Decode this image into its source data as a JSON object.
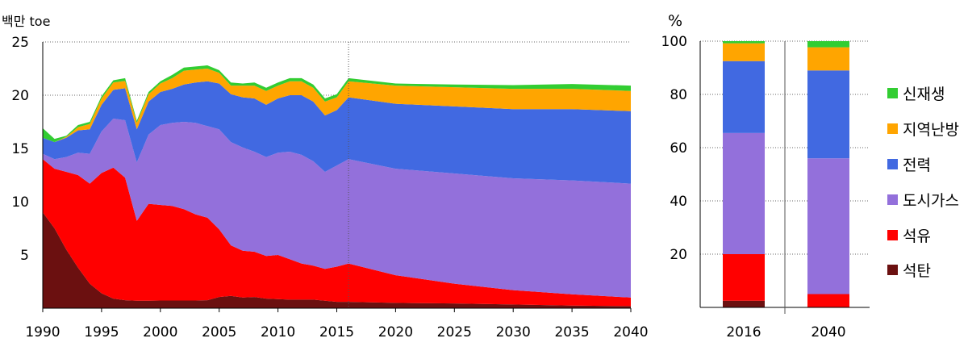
{
  "chart_data": [
    {
      "type": "area",
      "stacked": true,
      "ylabel": "백만 toe",
      "ylim": [
        0,
        25
      ],
      "yticks": [
        5,
        10,
        15,
        20,
        25
      ],
      "xlim": [
        1990,
        2040
      ],
      "xticks": [
        1990,
        1995,
        2000,
        2005,
        2010,
        2015,
        2020,
        2025,
        2030,
        2035,
        2040
      ],
      "marker_year": 2016,
      "grid": "horizontal dotted",
      "x": [
        1990,
        1991,
        1992,
        1993,
        1994,
        1995,
        1996,
        1997,
        1998,
        1999,
        2000,
        2001,
        2002,
        2003,
        2004,
        2005,
        2006,
        2007,
        2008,
        2009,
        2010,
        2011,
        2012,
        2013,
        2014,
        2015,
        2016,
        2020,
        2025,
        2030,
        2035,
        2040
      ],
      "series": [
        {
          "name": "석탄",
          "color": "#6b1010",
          "values": [
            9.0,
            7.5,
            5.5,
            3.8,
            2.3,
            1.4,
            0.9,
            0.75,
            0.7,
            0.7,
            0.72,
            0.72,
            0.72,
            0.72,
            0.75,
            1.05,
            1.15,
            1.0,
            1.05,
            0.9,
            0.85,
            0.8,
            0.8,
            0.8,
            0.7,
            0.6,
            0.6,
            0.5,
            0.45,
            0.35,
            0.25,
            0.2
          ]
        },
        {
          "name": "석유",
          "color": "#ff0000",
          "values": [
            5.0,
            5.6,
            7.3,
            8.7,
            9.4,
            11.3,
            12.3,
            11.5,
            7.5,
            9.1,
            8.98,
            8.88,
            8.58,
            8.08,
            7.75,
            6.35,
            4.75,
            4.4,
            4.25,
            4.0,
            4.15,
            3.8,
            3.4,
            3.2,
            3.0,
            3.3,
            3.6,
            2.6,
            1.85,
            1.35,
            1.05,
            0.8
          ]
        },
        {
          "name": "도시가스",
          "color": "#9370db",
          "values": [
            0.5,
            0.9,
            1.4,
            2.1,
            2.8,
            3.9,
            4.6,
            5.4,
            5.5,
            6.5,
            7.5,
            7.8,
            8.2,
            8.6,
            8.6,
            9.4,
            9.7,
            9.7,
            9.4,
            9.3,
            9.6,
            10.1,
            10.2,
            9.8,
            9.1,
            9.5,
            9.8,
            10.0,
            10.35,
            10.5,
            10.7,
            10.7
          ]
        },
        {
          "name": "전력",
          "color": "#4169e1",
          "values": [
            1.5,
            1.6,
            1.8,
            2.1,
            2.3,
            2.5,
            2.7,
            3.0,
            3.1,
            3.1,
            3.1,
            3.2,
            3.5,
            3.8,
            4.2,
            4.3,
            4.5,
            4.7,
            5.0,
            4.9,
            5.1,
            5.3,
            5.6,
            5.6,
            5.3,
            5.2,
            5.8,
            6.1,
            6.3,
            6.5,
            6.7,
            6.8
          ]
        },
        {
          "name": "지역난방",
          "color": "#ffa500",
          "values": [
            0.0,
            0.0,
            0.1,
            0.3,
            0.5,
            0.6,
            0.7,
            0.7,
            0.6,
            0.7,
            0.8,
            1.0,
            1.3,
            1.2,
            1.2,
            1.0,
            0.8,
            1.1,
            1.2,
            1.3,
            1.2,
            1.3,
            1.3,
            1.3,
            1.3,
            1.2,
            1.5,
            1.7,
            1.8,
            1.9,
            1.9,
            1.9
          ]
        },
        {
          "name": "신재생",
          "color": "#32cd32",
          "values": [
            0.9,
            0.3,
            0.1,
            0.2,
            0.2,
            0.2,
            0.2,
            0.25,
            0.2,
            0.2,
            0.2,
            0.3,
            0.3,
            0.3,
            0.3,
            0.25,
            0.3,
            0.2,
            0.3,
            0.3,
            0.3,
            0.3,
            0.3,
            0.3,
            0.3,
            0.3,
            0.3,
            0.2,
            0.25,
            0.35,
            0.45,
            0.5
          ]
        }
      ]
    },
    {
      "type": "bar",
      "stacked": true,
      "ylabel": "%",
      "ylim": [
        0,
        100
      ],
      "yticks": [
        20,
        40,
        60,
        80,
        100
      ],
      "grid": "horizontal dotted",
      "categories": [
        "2016",
        "2040"
      ],
      "series": [
        {
          "name": "석탄",
          "color": "#6b1010",
          "values": [
            2.5,
            0
          ]
        },
        {
          "name": "석유",
          "color": "#ff0000",
          "values": [
            17.5,
            5
          ]
        },
        {
          "name": "도시가스",
          "color": "#9370db",
          "values": [
            45.5,
            51
          ]
        },
        {
          "name": "전력",
          "color": "#4169e1",
          "values": [
            27,
            33
          ]
        },
        {
          "name": "지역난방",
          "color": "#ffa500",
          "values": [
            6.7,
            8.7
          ]
        },
        {
          "name": "신재생",
          "color": "#32cd32",
          "values": [
            0.8,
            2.3
          ]
        }
      ]
    }
  ],
  "legend": {
    "placement": "right",
    "items": [
      {
        "label": "신재생",
        "color": "#32cd32"
      },
      {
        "label": "지역난방",
        "color": "#ffa500"
      },
      {
        "label": "전력",
        "color": "#4169e1"
      },
      {
        "label": "도시가스",
        "color": "#9370db"
      },
      {
        "label": "석유",
        "color": "#ff0000"
      },
      {
        "label": "석탄",
        "color": "#6b1010"
      }
    ]
  }
}
